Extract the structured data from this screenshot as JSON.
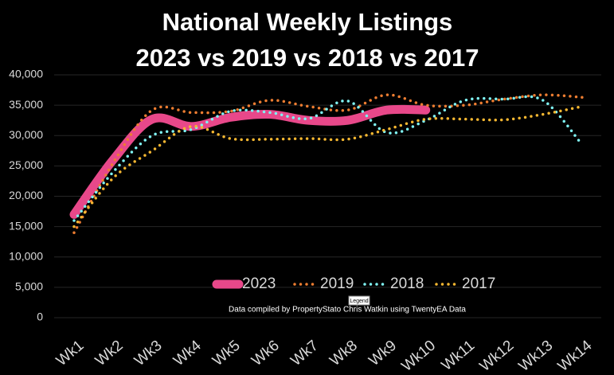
{
  "chart_data": {
    "type": "line",
    "title": "National Weekly Listings",
    "subtitle": "2023 vs 2019 vs 2018 vs 2017",
    "annotation": "Data compiled by PropertyStato Chris Watkin using TwentyEA Data",
    "tooltip": "Legend",
    "categories": [
      "Wk1",
      "Wk2",
      "Wk3",
      "Wk4",
      "Wk5",
      "Wk6",
      "Wk7",
      "Wk8",
      "Wk9",
      "Wk10",
      "Wk11",
      "Wk12",
      "Wk13",
      "Wk14"
    ],
    "series": [
      {
        "name": "2023",
        "color": "#e8488a",
        "style": "solid",
        "values": [
          17000,
          26000,
          32700,
          31500,
          33000,
          33500,
          32500,
          32500,
          34200,
          34200,
          null,
          null,
          null,
          null
        ]
      },
      {
        "name": "2019",
        "color": "#ed7d31",
        "style": "dotted",
        "values": [
          14000,
          25500,
          34200,
          33800,
          34000,
          35800,
          34800,
          34200,
          36700,
          35000,
          35000,
          36000,
          36700,
          36300
        ]
      },
      {
        "name": "2018",
        "color": "#7ff3f3",
        "style": "dotted",
        "values": [
          16000,
          24000,
          30000,
          31000,
          34000,
          33800,
          32800,
          35700,
          30500,
          32500,
          35800,
          36000,
          35800,
          28500
        ]
      },
      {
        "name": "2017",
        "color": "#f5b731",
        "style": "dotted",
        "values": [
          15000,
          23000,
          27500,
          31500,
          29500,
          29400,
          29500,
          29400,
          31000,
          32700,
          32700,
          32600,
          33500,
          34800
        ]
      }
    ],
    "ylim": [
      0,
      40000
    ],
    "yticks": [
      0,
      {
        "value": 5000,
        "label": "5,000"
      },
      {
        "value": 10000,
        "label": "10,000"
      },
      {
        "value": 15000,
        "label": "15,000"
      },
      {
        "value": 20000,
        "label": "20,000"
      },
      {
        "value": 25000,
        "label": "25,000"
      },
      {
        "value": 30000,
        "label": "30,000"
      },
      {
        "value": 35000,
        "label": "35,000"
      },
      {
        "value": 40000,
        "label": "40,000"
      }
    ],
    "grid": true,
    "legend": "bottom"
  }
}
